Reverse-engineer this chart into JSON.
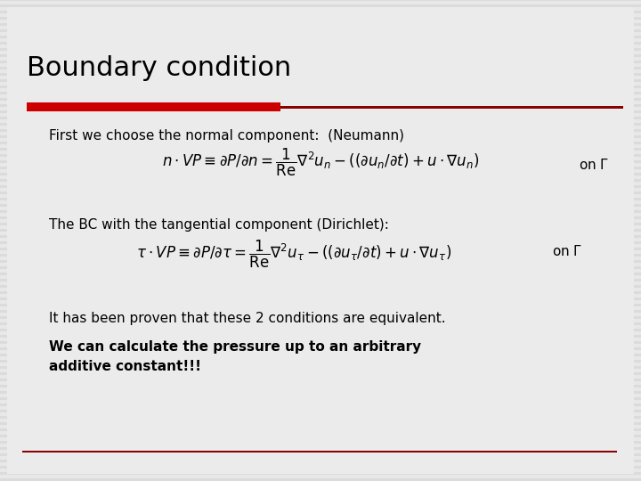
{
  "title": "Boundary condition",
  "title_color": "#000000",
  "title_fontsize": 22,
  "red_line_color": "#cc0000",
  "thin_line_color": "#880000",
  "bg_color": "#d8d8d8",
  "slide_bg": "#e8e8e8",
  "text1": "First we choose the normal component:  (Neumann)",
  "text2": "The BC with the tangential component (Dirichlet):",
  "text3": "It has been proven that these 2 conditions are equivalent.",
  "text4": "We can calculate the pressure up to an arbitrary\nadditive constant!!!",
  "body_fontsize": 11,
  "eq_fontsize": 12,
  "bottom_line_color": "#880000",
  "stripe_color": "#cccccc",
  "stripe_bg": "#e4e4e4"
}
